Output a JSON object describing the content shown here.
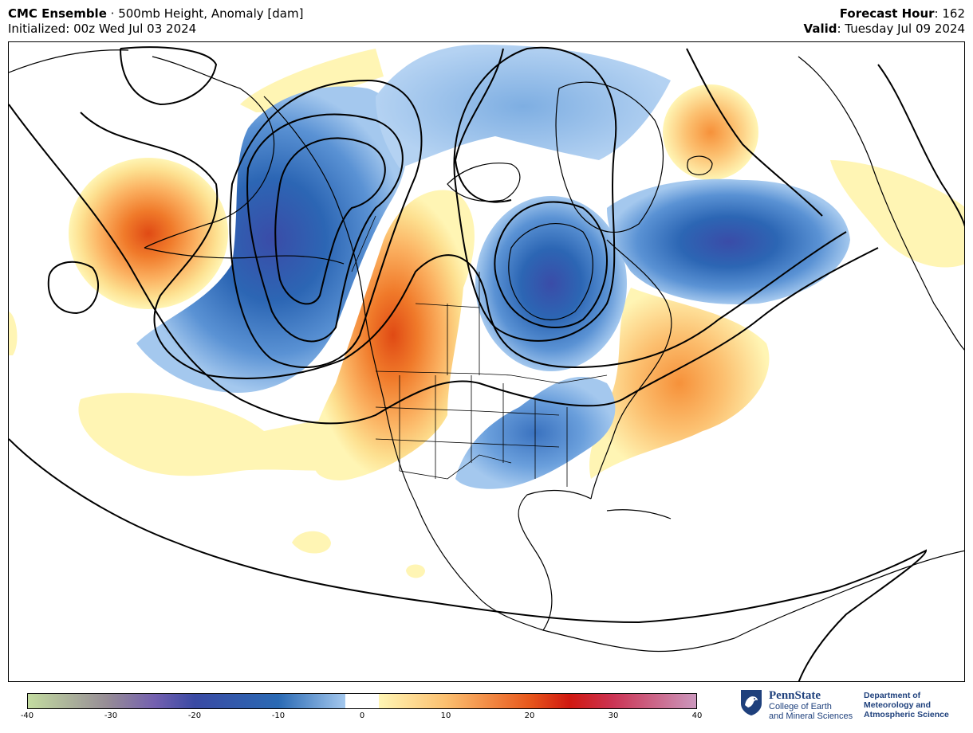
{
  "header": {
    "model": "CMC Ensemble",
    "separator": " · ",
    "product": "500mb Height, Anomaly [dam]",
    "initialized": "Initialized: 00z Wed Jul 03 2024",
    "forecast_hour_label": "Forecast Hour",
    "forecast_hour_value": ": 162",
    "valid_label": "Valid",
    "valid_value": ": Tuesday Jul 09 2024"
  },
  "map": {
    "region": "North America / North Pacific / North Atlantic",
    "field": "500mb height contours with anomaly shading",
    "anomaly_centers": [
      {
        "sign": "positive",
        "location": "North Pacific (near Dateline)"
      },
      {
        "sign": "positive",
        "location": "Pacific Northwest / Western Canada"
      },
      {
        "sign": "positive",
        "location": "Iceland / Norwegian Sea"
      },
      {
        "sign": "positive",
        "location": "Western North Atlantic"
      },
      {
        "sign": "negative",
        "location": "Bering Sea / Alaska"
      },
      {
        "sign": "negative",
        "location": "Hudson Bay"
      },
      {
        "sign": "negative",
        "location": "North Atlantic south of Greenland"
      },
      {
        "sign": "negative",
        "location": "Great Lakes / Southern Plains"
      },
      {
        "sign": "negative",
        "location": "Arctic Ocean"
      }
    ]
  },
  "colorbar": {
    "min": -40,
    "max": 40,
    "ticks": [
      "-40",
      "-30",
      "-20",
      "-10",
      "0",
      "10",
      "20",
      "30",
      "40"
    ],
    "colors": {
      "neg_40": "#c3dca0",
      "neg_30": "#968c96",
      "neg_25": "#7460b0",
      "neg_20": "#3a4aa4",
      "neg_10": "#2a6ab4",
      "neg_2": "#a4c8ee",
      "zero": "#ffffff",
      "pos_2": "#fff5b4",
      "pos_10": "#fcc070",
      "pos_20": "#e8581c",
      "pos_25": "#d01810",
      "pos_30": "#cc3454",
      "pos_40": "#cc98be"
    }
  },
  "logo": {
    "university": "PennState",
    "college_line1": "College of Earth",
    "college_line2": "and Mineral Sciences",
    "dept_line1": "Department of",
    "dept_line2": "Meteorology and",
    "dept_line3": "Atmospheric Science"
  }
}
